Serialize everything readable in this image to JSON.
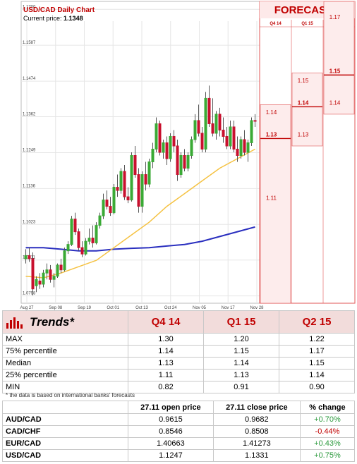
{
  "chart": {
    "title": "USD/CAD Daily Chart",
    "price_label": "Current price:",
    "price_value": "1.1348",
    "forecast_title": "FORECASTS"
  },
  "chart_data": {
    "type": "candlestick",
    "y_ticks": [
      "1.1700",
      "1.1587",
      "1.1474",
      "1.1362",
      "1.1249",
      "1.1136",
      "1.1023",
      "1.0911",
      "1.0798"
    ],
    "x_ticks": [
      "Aug 27",
      "Sep 08",
      "Sep 19",
      "Oct 01",
      "Oct 13",
      "Oct 24",
      "Nov 05",
      "Nov 17",
      "Nov 28"
    ],
    "ylim": [
      1.0775,
      1.1725
    ],
    "candles": [
      [
        1.0915,
        1.0945,
        1.09,
        1.0925
      ],
      [
        1.0925,
        1.095,
        1.0905,
        1.0915
      ],
      [
        1.0915,
        1.0935,
        1.08,
        1.082
      ],
      [
        1.083,
        1.086,
        1.081,
        1.085
      ],
      [
        1.0845,
        1.087,
        1.082,
        1.0835
      ],
      [
        1.0835,
        1.088,
        1.0825,
        1.087
      ],
      [
        1.087,
        1.09,
        1.085,
        1.088
      ],
      [
        1.088,
        1.0895,
        1.084,
        1.085
      ],
      [
        1.085,
        1.087,
        1.0825,
        1.086
      ],
      [
        1.086,
        1.09,
        1.0855,
        1.0895
      ],
      [
        1.0895,
        1.0915,
        1.087,
        1.088
      ],
      [
        1.088,
        1.095,
        1.0875,
        1.094
      ],
      [
        1.094,
        1.097,
        1.093,
        1.096
      ],
      [
        1.096,
        1.105,
        1.0955,
        1.104
      ],
      [
        1.104,
        1.106,
        1.099,
        1.1
      ],
      [
        1.1,
        1.101,
        1.094,
        1.095
      ],
      [
        1.095,
        1.097,
        1.092,
        1.093
      ],
      [
        1.093,
        1.098,
        1.0925,
        1.097
      ],
      [
        1.097,
        1.101,
        1.096,
        1.098
      ],
      [
        1.098,
        1.102,
        1.095,
        1.0965
      ],
      [
        1.0965,
        1.103,
        1.096,
        1.102
      ],
      [
        1.102,
        1.106,
        1.101,
        1.105
      ],
      [
        1.105,
        1.112,
        1.104,
        1.11
      ],
      [
        1.11,
        1.113,
        1.107,
        1.108
      ],
      [
        1.108,
        1.111,
        1.105,
        1.106
      ],
      [
        1.106,
        1.115,
        1.1055,
        1.114
      ],
      [
        1.114,
        1.118,
        1.111,
        1.113
      ],
      [
        1.113,
        1.12,
        1.112,
        1.119
      ],
      [
        1.119,
        1.121,
        1.11,
        1.111
      ],
      [
        1.111,
        1.114,
        1.109,
        1.11
      ],
      [
        1.11,
        1.125,
        1.1095,
        1.124
      ],
      [
        1.124,
        1.127,
        1.117,
        1.118
      ],
      [
        1.118,
        1.12,
        1.106,
        1.108
      ],
      [
        1.108,
        1.119,
        1.106,
        1.118
      ],
      [
        1.118,
        1.122,
        1.113,
        1.115
      ],
      [
        1.115,
        1.123,
        1.114,
        1.122
      ],
      [
        1.122,
        1.128,
        1.12,
        1.126
      ],
      [
        1.126,
        1.136,
        1.125,
        1.134
      ],
      [
        1.134,
        1.135,
        1.124,
        1.125
      ],
      [
        1.125,
        1.129,
        1.123,
        1.128
      ],
      [
        1.128,
        1.13,
        1.121,
        1.123
      ],
      [
        1.123,
        1.131,
        1.122,
        1.13
      ],
      [
        1.13,
        1.132,
        1.125,
        1.127
      ],
      [
        1.127,
        1.129,
        1.116,
        1.118
      ],
      [
        1.118,
        1.125,
        1.117,
        1.124
      ],
      [
        1.124,
        1.126,
        1.119,
        1.12
      ],
      [
        1.12,
        1.125,
        1.119,
        1.124
      ],
      [
        1.124,
        1.13,
        1.123,
        1.129
      ],
      [
        1.129,
        1.137,
        1.128,
        1.135
      ],
      [
        1.135,
        1.14,
        1.13,
        1.131
      ],
      [
        1.131,
        1.133,
        1.125,
        1.126
      ],
      [
        1.126,
        1.144,
        1.125,
        1.142
      ],
      [
        1.142,
        1.146,
        1.133,
        1.134
      ],
      [
        1.134,
        1.142,
        1.13,
        1.131
      ],
      [
        1.131,
        1.138,
        1.129,
        1.137
      ],
      [
        1.137,
        1.139,
        1.13,
        1.132
      ],
      [
        1.132,
        1.136,
        1.128,
        1.13
      ],
      [
        1.13,
        1.133,
        1.126,
        1.127
      ],
      [
        1.127,
        1.135,
        1.126,
        1.133
      ],
      [
        1.133,
        1.135,
        1.125,
        1.126
      ],
      [
        1.126,
        1.13,
        1.122,
        1.124
      ],
      [
        1.124,
        1.13,
        1.123,
        1.129
      ],
      [
        1.129,
        1.132,
        1.124,
        1.125
      ],
      [
        1.125,
        1.129,
        1.122,
        1.128
      ],
      [
        1.128,
        1.136,
        1.127,
        1.135
      ],
      [
        1.135,
        1.137,
        1.133,
        1.1348
      ]
    ],
    "ma_fast": [
      [
        0,
        1.086
      ],
      [
        5,
        1.0855
      ],
      [
        10,
        1.087
      ],
      [
        15,
        1.089
      ],
      [
        20,
        1.091
      ],
      [
        25,
        1.095
      ],
      [
        30,
        1.099
      ],
      [
        35,
        1.103
      ],
      [
        40,
        1.108
      ],
      [
        45,
        1.112
      ],
      [
        50,
        1.116
      ],
      [
        55,
        1.12
      ],
      [
        60,
        1.123
      ],
      [
        65,
        1.126
      ]
    ],
    "ma_slow": [
      [
        0,
        1.095
      ],
      [
        5,
        1.095
      ],
      [
        10,
        1.0945
      ],
      [
        15,
        1.094
      ],
      [
        20,
        1.094
      ],
      [
        25,
        1.0945
      ],
      [
        30,
        1.0948
      ],
      [
        35,
        1.095
      ],
      [
        40,
        1.0955
      ],
      [
        45,
        1.096
      ],
      [
        50,
        1.097
      ],
      [
        55,
        1.0985
      ],
      [
        60,
        1.1
      ],
      [
        65,
        1.1015
      ]
    ],
    "forecast_columns": [
      "Q4 14",
      "Q1 15",
      "Q2 15"
    ],
    "forecast_labels": [
      {
        "col": 0,
        "value": "1.14",
        "y": 1.137,
        "bold": false
      },
      {
        "col": 0,
        "value": "1.13",
        "y": 1.13,
        "bold": true
      },
      {
        "col": 0,
        "value": "1.11",
        "y": 1.11,
        "bold": false
      },
      {
        "col": 1,
        "value": "1.15",
        "y": 1.147,
        "bold": false
      },
      {
        "col": 1,
        "value": "1.14",
        "y": 1.14,
        "bold": true
      },
      {
        "col": 1,
        "value": "1.13",
        "y": 1.13,
        "bold": false
      },
      {
        "col": 2,
        "value": "1.17",
        "y": 1.167,
        "bold": false
      },
      {
        "col": 2,
        "value": "1.15",
        "y": 1.15,
        "bold": true
      },
      {
        "col": 2,
        "value": "1.14",
        "y": 1.14,
        "bold": false
      }
    ],
    "forecast_ranges": [
      {
        "col": 0,
        "max": 1.14,
        "min": 1.0775
      },
      {
        "col": 1,
        "max": 1.15,
        "min": 1.127
      },
      {
        "col": 2,
        "max": 1.1725,
        "min": 1.137
      }
    ],
    "colors": {
      "up": "#3aaa35",
      "down": "#c8102e",
      "ma_fast": "#f5c242",
      "ma_slow": "#2a2fbf",
      "forecast": "#e05555"
    }
  },
  "trends": {
    "title": "Trends*",
    "columns": [
      "Q4 14",
      "Q1 15",
      "Q2 15"
    ],
    "rows": [
      {
        "label": "MAX",
        "values": [
          "1.30",
          "1.20",
          "1.22"
        ]
      },
      {
        "label": "75% percentile",
        "values": [
          "1.14",
          "1.15",
          "1.17"
        ]
      },
      {
        "label": "Median",
        "values": [
          "1.13",
          "1.14",
          "1.15"
        ]
      },
      {
        "label": "25% percentile",
        "values": [
          "1.11",
          "1.13",
          "1.14"
        ]
      },
      {
        "label": "MIN",
        "values": [
          "0.82",
          "0.91",
          "0.90"
        ]
      }
    ],
    "note": "* the data is based on international banks' forecasts"
  },
  "pairs": {
    "headers": [
      "",
      "27.11 open price",
      "27.11 close price",
      "% change"
    ],
    "rows": [
      {
        "pair": "AUD/CAD",
        "open": "0.9615",
        "close": "0.9682",
        "change": "+0.70%",
        "dir": "pos"
      },
      {
        "pair": "CAD/CHF",
        "open": "0.8546",
        "close": "0.8508",
        "change": "-0.44%",
        "dir": "neg"
      },
      {
        "pair": "EUR/CAD",
        "open": "1.40663",
        "close": "1.41273",
        "change": "+0.43%",
        "dir": "pos"
      },
      {
        "pair": "USD/CAD",
        "open": "1.1247",
        "close": "1.1331",
        "change": "+0.75%",
        "dir": "pos"
      }
    ]
  }
}
